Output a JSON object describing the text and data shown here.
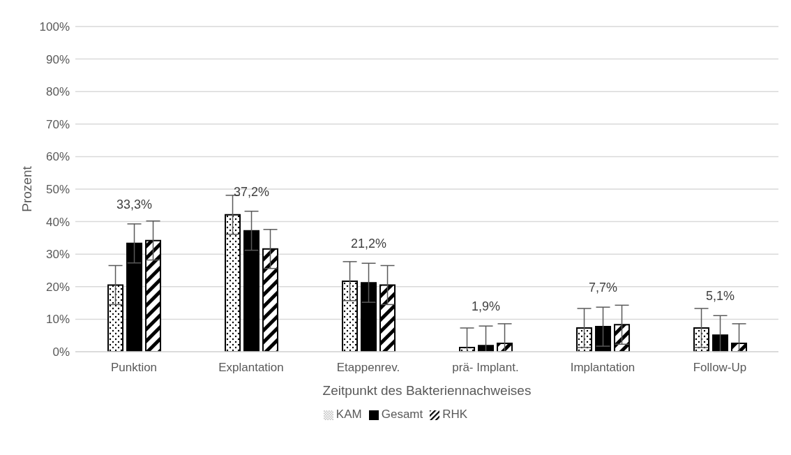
{
  "chart_data": {
    "type": "bar",
    "xlabel": "Zeitpunkt des Bakteriennachweises",
    "ylabel": "Prozent",
    "categories": [
      "Punktion",
      "Explantation",
      "Etappenrev.",
      "prä- Implant.",
      "Implantation",
      "Follow-Up"
    ],
    "series": [
      {
        "name": "KAM",
        "color": "#000000",
        "values": [
          20.5,
          42.1,
          21.7,
          1.3,
          7.3,
          7.3
        ],
        "errors": [
          6,
          6,
          6,
          [
            0,
            7.3
          ],
          6,
          6
        ]
      },
      {
        "name": "Gesamt",
        "color": "#000000",
        "values": [
          33.3,
          37.2,
          21.2,
          1.9,
          7.7,
          5.1
        ],
        "errors": [
          6,
          6,
          6,
          [
            0,
            7.9
          ],
          6,
          [
            0,
            11.1
          ]
        ],
        "value_labels": [
          "33,3%",
          "37,2%",
          "21,2%",
          "1,9%",
          "7,7%",
          "5,1%"
        ]
      },
      {
        "name": "RHK",
        "color": "#000000",
        "values": [
          34.2,
          31.6,
          20.5,
          2.6,
          8.3,
          2.6
        ],
        "errors": [
          6,
          6,
          6,
          [
            0,
            8.6
          ],
          6,
          [
            0,
            8.6
          ]
        ]
      }
    ],
    "ylim": [
      0,
      100
    ],
    "yticks": [
      {
        "value": 0,
        "label": "0%"
      },
      {
        "value": 10,
        "label": "10%"
      },
      {
        "value": 20,
        "label": "20%"
      },
      {
        "value": 30,
        "label": "30%"
      },
      {
        "value": 40,
        "label": "40%"
      },
      {
        "value": 50,
        "label": "50%"
      },
      {
        "value": 60,
        "label": "60%"
      },
      {
        "value": 70,
        "label": "70%"
      },
      {
        "value": 80,
        "label": "80%"
      },
      {
        "value": 90,
        "label": "90%"
      },
      {
        "value": 100,
        "label": "100%"
      }
    ],
    "grid": "y",
    "legend": "bottom"
  }
}
